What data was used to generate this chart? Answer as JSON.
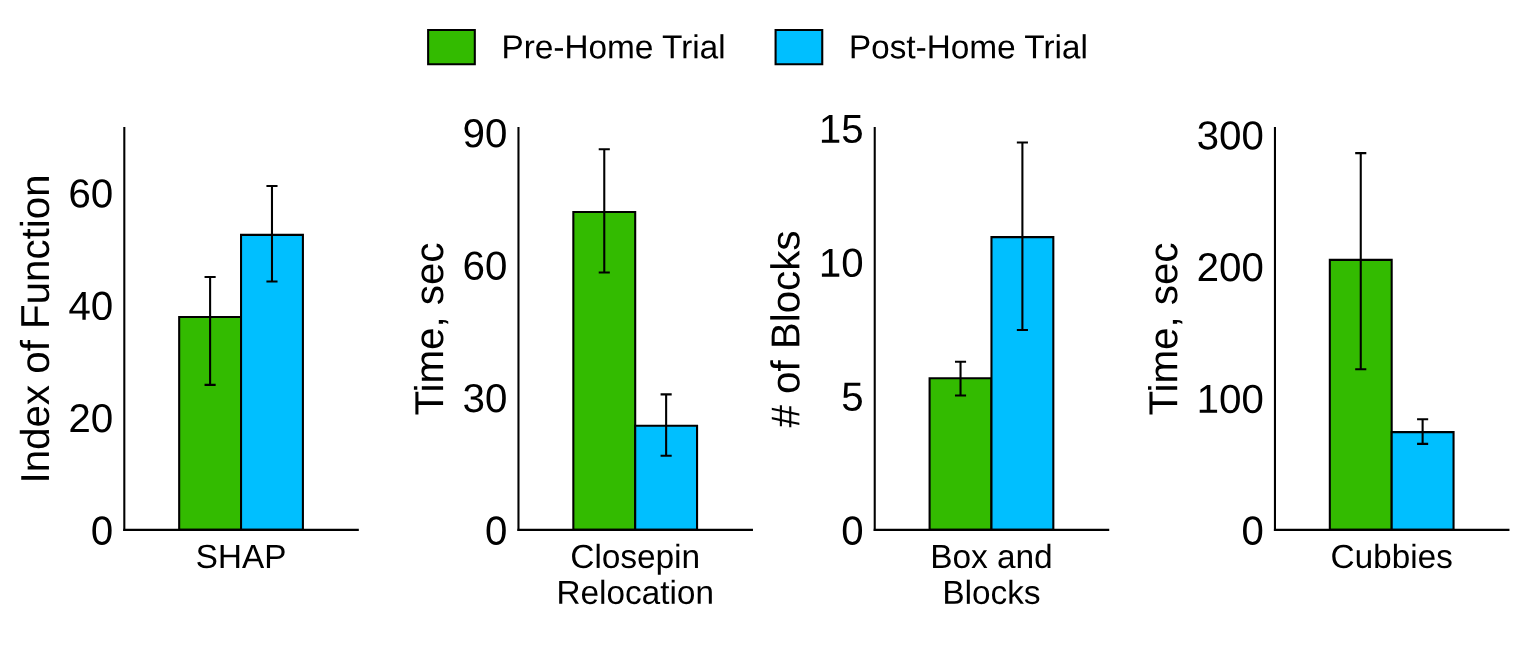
{
  "chart_data": [
    {
      "type": "bar",
      "categories": [
        "SHAP"
      ],
      "ylabel": "Index of Function",
      "ylim": [
        0,
        71.5
      ],
      "yticks": [
        0,
        20,
        40,
        60
      ],
      "legend": "top",
      "series": [
        {
          "name": "Pre-Home Trial",
          "color": "#33bb00",
          "values": [
            37.9
          ],
          "errors": [
            [
              25.8,
              45.0
            ]
          ]
        },
        {
          "name": "Post-Home Trial",
          "color": "#00bfff",
          "values": [
            52.5
          ],
          "errors": [
            [
              44.2,
              61.2
            ]
          ]
        }
      ]
    },
    {
      "type": "bar",
      "categories": [
        "Closepin\nRelocation"
      ],
      "ylabel": "Time, sec",
      "ylim": [
        0,
        91
      ],
      "yticks": [
        0,
        30,
        60,
        90
      ],
      "series": [
        {
          "color": "#33bb00",
          "values": [
            72.0
          ],
          "errors": [
            [
              58.3,
              86.2
            ]
          ]
        },
        {
          "color": "#00bfff",
          "values": [
            23.6
          ],
          "errors": [
            [
              16.8,
              30.7
            ]
          ]
        }
      ]
    },
    {
      "type": "bar",
      "categories": [
        "Box and\nBlocks"
      ],
      "ylabel": "# of Blocks",
      "ylim": [
        0,
        15
      ],
      "yticks": [
        0,
        5,
        10,
        15
      ],
      "series": [
        {
          "color": "#33bb00",
          "values": [
            5.66
          ],
          "errors": [
            [
              5.02,
              6.28
            ]
          ]
        },
        {
          "color": "#00bfff",
          "values": [
            10.93
          ],
          "errors": [
            [
              7.46,
              14.46
            ]
          ]
        }
      ]
    },
    {
      "type": "bar",
      "categories": [
        "Cubbies"
      ],
      "ylabel": "Time, sec",
      "ylim": [
        0,
        305
      ],
      "yticks": [
        0,
        100,
        200,
        300
      ],
      "series": [
        {
          "color": "#33bb00",
          "values": [
            205
          ],
          "errors": [
            [
              122,
              286
            ]
          ]
        },
        {
          "color": "#00bfff",
          "values": [
            74.2
          ],
          "errors": [
            [
              65.3,
              84
            ]
          ]
        }
      ]
    }
  ]
}
